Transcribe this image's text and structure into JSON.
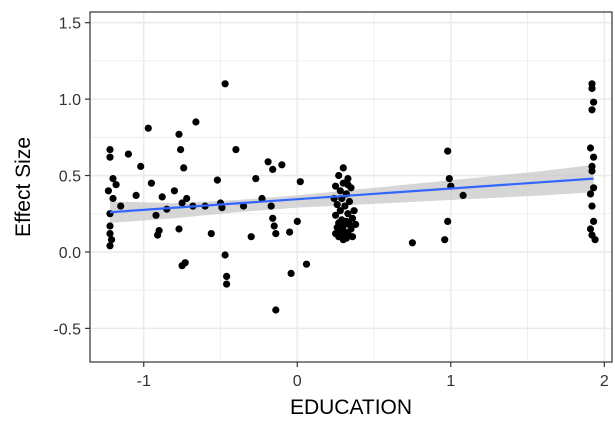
{
  "chart_data": {
    "type": "scatter",
    "title": "",
    "xlabel": "EDUCATION",
    "ylabel": "Effect Size",
    "xlim": [
      -1.35,
      2.05
    ],
    "ylim": [
      -0.72,
      1.57
    ],
    "x_ticks": [
      -1,
      0,
      1,
      2
    ],
    "x_tick_labels": [
      "-1",
      "0",
      "1",
      "2"
    ],
    "y_ticks": [
      -0.5,
      0.0,
      0.5,
      1.0,
      1.5
    ],
    "y_tick_labels": [
      "-0.5",
      "0.0",
      "0.5",
      "1.0",
      "1.5"
    ],
    "grid": true,
    "legend": "none",
    "colors": {
      "points": "#000000",
      "fit_line": "#3366ff",
      "confidence_band": "#c8c8c8",
      "grid": "#ebebeb",
      "panel_border": "#333333"
    },
    "points": [
      {
        "x": -1.22,
        "y": 0.67
      },
      {
        "x": -1.22,
        "y": 0.62
      },
      {
        "x": -1.2,
        "y": 0.48
      },
      {
        "x": -1.23,
        "y": 0.4
      },
      {
        "x": -1.2,
        "y": 0.35
      },
      {
        "x": -1.18,
        "y": 0.44
      },
      {
        "x": -1.15,
        "y": 0.3
      },
      {
        "x": -1.22,
        "y": 0.25
      },
      {
        "x": -1.22,
        "y": 0.17
      },
      {
        "x": -1.22,
        "y": 0.12
      },
      {
        "x": -1.21,
        "y": 0.08
      },
      {
        "x": -1.22,
        "y": 0.04
      },
      {
        "x": -1.1,
        "y": 0.64
      },
      {
        "x": -1.05,
        "y": 0.37
      },
      {
        "x": -1.02,
        "y": 0.56
      },
      {
        "x": -0.97,
        "y": 0.81
      },
      {
        "x": -0.95,
        "y": 0.45
      },
      {
        "x": -0.92,
        "y": 0.24
      },
      {
        "x": -0.9,
        "y": 0.14
      },
      {
        "x": -0.91,
        "y": 0.11
      },
      {
        "x": -0.88,
        "y": 0.36
      },
      {
        "x": -0.85,
        "y": 0.28
      },
      {
        "x": -0.8,
        "y": 0.4
      },
      {
        "x": -0.77,
        "y": 0.77
      },
      {
        "x": -0.76,
        "y": 0.67
      },
      {
        "x": -0.74,
        "y": 0.55
      },
      {
        "x": -0.72,
        "y": 0.35
      },
      {
        "x": -0.75,
        "y": 0.32
      },
      {
        "x": -0.77,
        "y": 0.15
      },
      {
        "x": -0.73,
        "y": -0.07
      },
      {
        "x": -0.75,
        "y": -0.09
      },
      {
        "x": -0.68,
        "y": 0.3
      },
      {
        "x": -0.66,
        "y": 0.85
      },
      {
        "x": -0.6,
        "y": 0.3
      },
      {
        "x": -0.56,
        "y": 0.12
      },
      {
        "x": -0.52,
        "y": 0.47
      },
      {
        "x": -0.5,
        "y": 0.32
      },
      {
        "x": -0.49,
        "y": 0.29
      },
      {
        "x": -0.47,
        "y": 1.1
      },
      {
        "x": -0.47,
        "y": -0.02
      },
      {
        "x": -0.46,
        "y": -0.16
      },
      {
        "x": -0.46,
        "y": -0.21
      },
      {
        "x": -0.4,
        "y": 0.67
      },
      {
        "x": -0.35,
        "y": 0.3
      },
      {
        "x": -0.3,
        "y": 0.1
      },
      {
        "x": -0.27,
        "y": 0.48
      },
      {
        "x": -0.23,
        "y": 0.35
      },
      {
        "x": -0.19,
        "y": 0.59
      },
      {
        "x": -0.16,
        "y": 0.54
      },
      {
        "x": -0.17,
        "y": 0.3
      },
      {
        "x": -0.16,
        "y": 0.22
      },
      {
        "x": -0.15,
        "y": 0.17
      },
      {
        "x": -0.14,
        "y": 0.12
      },
      {
        "x": -0.14,
        "y": -0.38
      },
      {
        "x": -0.1,
        "y": 0.57
      },
      {
        "x": -0.05,
        "y": 0.13
      },
      {
        "x": -0.04,
        "y": -0.14
      },
      {
        "x": 0.0,
        "y": 0.2
      },
      {
        "x": 0.02,
        "y": 0.46
      },
      {
        "x": 0.06,
        "y": -0.08
      },
      {
        "x": 0.3,
        "y": 0.55
      },
      {
        "x": 0.27,
        "y": 0.5
      },
      {
        "x": 0.33,
        "y": 0.48
      },
      {
        "x": 0.3,
        "y": 0.45
      },
      {
        "x": 0.25,
        "y": 0.43
      },
      {
        "x": 0.35,
        "y": 0.42
      },
      {
        "x": 0.28,
        "y": 0.4
      },
      {
        "x": 0.32,
        "y": 0.38
      },
      {
        "x": 0.29,
        "y": 0.35
      },
      {
        "x": 0.34,
        "y": 0.33
      },
      {
        "x": 0.26,
        "y": 0.31
      },
      {
        "x": 0.31,
        "y": 0.3
      },
      {
        "x": 0.28,
        "y": 0.27
      },
      {
        "x": 0.33,
        "y": 0.25
      },
      {
        "x": 0.25,
        "y": 0.24
      },
      {
        "x": 0.36,
        "y": 0.22
      },
      {
        "x": 0.29,
        "y": 0.21
      },
      {
        "x": 0.32,
        "y": 0.2
      },
      {
        "x": 0.27,
        "y": 0.19
      },
      {
        "x": 0.34,
        "y": 0.18
      },
      {
        "x": 0.3,
        "y": 0.17
      },
      {
        "x": 0.26,
        "y": 0.16
      },
      {
        "x": 0.35,
        "y": 0.15
      },
      {
        "x": 0.28,
        "y": 0.14
      },
      {
        "x": 0.31,
        "y": 0.13
      },
      {
        "x": 0.33,
        "y": 0.12
      },
      {
        "x": 0.29,
        "y": 0.11
      },
      {
        "x": 0.27,
        "y": 0.1
      },
      {
        "x": 0.32,
        "y": 0.09
      },
      {
        "x": 0.3,
        "y": 0.08
      },
      {
        "x": 0.36,
        "y": 0.1
      },
      {
        "x": 0.25,
        "y": 0.12
      },
      {
        "x": 0.38,
        "y": 0.18
      },
      {
        "x": 0.37,
        "y": 0.27
      },
      {
        "x": 0.24,
        "y": 0.35
      },
      {
        "x": 0.33,
        "y": 0.44
      },
      {
        "x": 0.75,
        "y": 0.06
      },
      {
        "x": 0.98,
        "y": 0.66
      },
      {
        "x": 0.99,
        "y": 0.48
      },
      {
        "x": 1.0,
        "y": 0.43
      },
      {
        "x": 0.98,
        "y": 0.2
      },
      {
        "x": 0.96,
        "y": 0.08
      },
      {
        "x": 1.08,
        "y": 0.37
      },
      {
        "x": 1.92,
        "y": 1.1
      },
      {
        "x": 1.92,
        "y": 1.07
      },
      {
        "x": 1.93,
        "y": 0.98
      },
      {
        "x": 1.92,
        "y": 0.93
      },
      {
        "x": 1.91,
        "y": 0.68
      },
      {
        "x": 1.93,
        "y": 0.62
      },
      {
        "x": 1.92,
        "y": 0.56
      },
      {
        "x": 1.92,
        "y": 0.53
      },
      {
        "x": 1.93,
        "y": 0.42
      },
      {
        "x": 1.91,
        "y": 0.38
      },
      {
        "x": 1.92,
        "y": 0.3
      },
      {
        "x": 1.93,
        "y": 0.2
      },
      {
        "x": 1.91,
        "y": 0.15
      },
      {
        "x": 1.92,
        "y": 0.11
      },
      {
        "x": 1.94,
        "y": 0.08
      }
    ],
    "fit_line": {
      "x": [
        -1.22,
        1.93
      ],
      "y": [
        0.26,
        0.48
      ]
    },
    "confidence_band": {
      "x": [
        -1.22,
        -0.8,
        -0.4,
        0.0,
        0.4,
        0.8,
        1.2,
        1.6,
        1.93
      ],
      "upper": [
        0.33,
        0.32,
        0.34,
        0.37,
        0.41,
        0.45,
        0.49,
        0.53,
        0.57
      ],
      "lower": [
        0.19,
        0.22,
        0.26,
        0.29,
        0.31,
        0.33,
        0.35,
        0.37,
        0.39
      ]
    }
  }
}
